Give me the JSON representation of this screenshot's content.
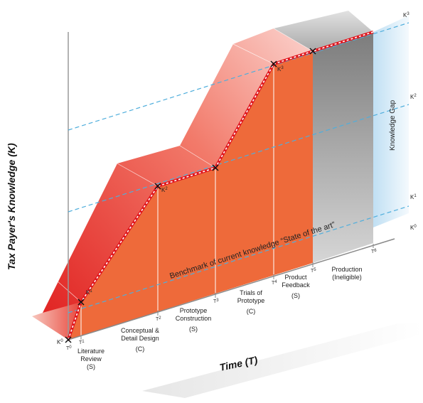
{
  "y_axis_title": "Tax Payer's Knowledge (K)",
  "x_axis_title": "Time (T)",
  "benchmark_label": "Benchmark of current knowledge “State of the art”",
  "gap_label": "Knowledge Gap",
  "right_levels": [
    {
      "base": "K",
      "sup": "3"
    },
    {
      "base": "K",
      "sup": "2"
    },
    {
      "base": "K",
      "sup": "1"
    },
    {
      "base": "K",
      "sup": "0"
    }
  ],
  "points": [
    {
      "base": "K",
      "sup": "0"
    },
    {
      "base": "K",
      "sup": "1"
    },
    {
      "base": "K",
      "sup": "2"
    },
    {
      "base": "K",
      "sup": "3"
    }
  ],
  "time_ticks": [
    {
      "base": "T",
      "sup": "0"
    },
    {
      "base": "T",
      "sup": "1"
    },
    {
      "base": "T",
      "sup": "2"
    },
    {
      "base": "T",
      "sup": "3"
    },
    {
      "base": "T",
      "sup": "4"
    },
    {
      "base": "T",
      "sup": "5"
    },
    {
      "base": "T",
      "sup": "6"
    }
  ],
  "phases": [
    {
      "lines": [
        "Literature",
        "Review",
        "(S)"
      ]
    },
    {
      "lines": [
        "Conceptual &",
        "Detail Design",
        "(C)"
      ]
    },
    {
      "lines": [
        "Prototype",
        "Construction",
        "(S)"
      ]
    },
    {
      "lines": [
        "Trials of",
        "Prototype",
        "(C)"
      ]
    },
    {
      "lines": [
        "Product",
        "Feedback",
        "(S)"
      ]
    },
    {
      "lines": [
        "Production",
        "(Ineligible)"
      ]
    }
  ],
  "colors": {
    "front_orange": "#EE6A3A",
    "top_red": "#E01E1E",
    "gray": "#8A8A8A",
    "gap_blue": "#CFE6F5",
    "dashed_blue": "#4FAEDC",
    "path_red": "#E0161E"
  }
}
